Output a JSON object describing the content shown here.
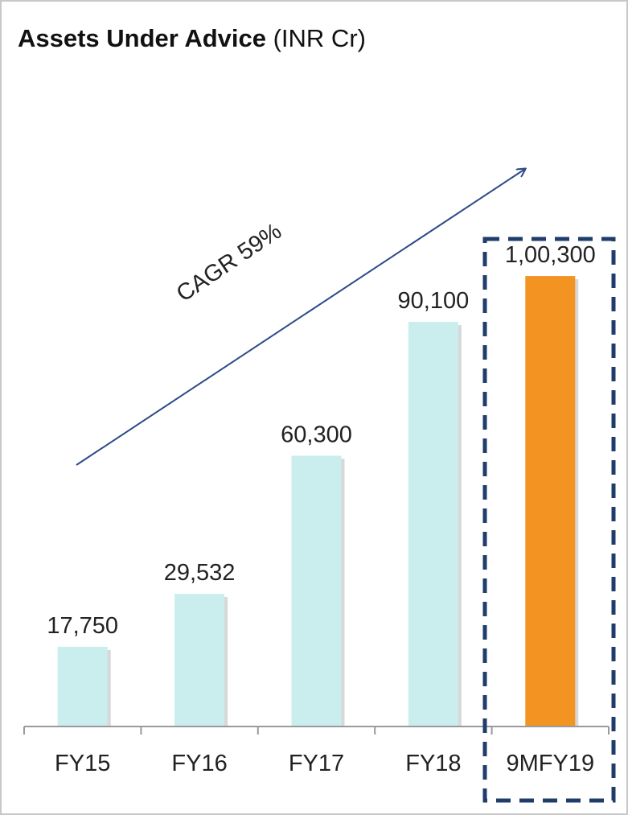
{
  "chart_data": {
    "type": "bar",
    "title": "Assets Under Advice",
    "title_unit": "(INR Cr)",
    "categories": [
      "FY15",
      "FY16",
      "FY17",
      "FY18",
      "9MFY19"
    ],
    "values": [
      17750,
      29532,
      60300,
      90100,
      100300
    ],
    "value_labels": [
      "17,750",
      "29,532",
      "60,300",
      "90,100",
      "1,00,300"
    ],
    "ylim": [
      0,
      115000
    ],
    "grid": false,
    "legend": "none",
    "highlighted_category": "9MFY19",
    "annotation": "CAGR 59%",
    "colors": {
      "bar": "#c9eeed",
      "highlight_bar": "#f39321",
      "arrow": "#2c4a87",
      "highlight_box": "#1f3d6b",
      "axis": "#9a9a9a",
      "text": "#222222"
    }
  }
}
